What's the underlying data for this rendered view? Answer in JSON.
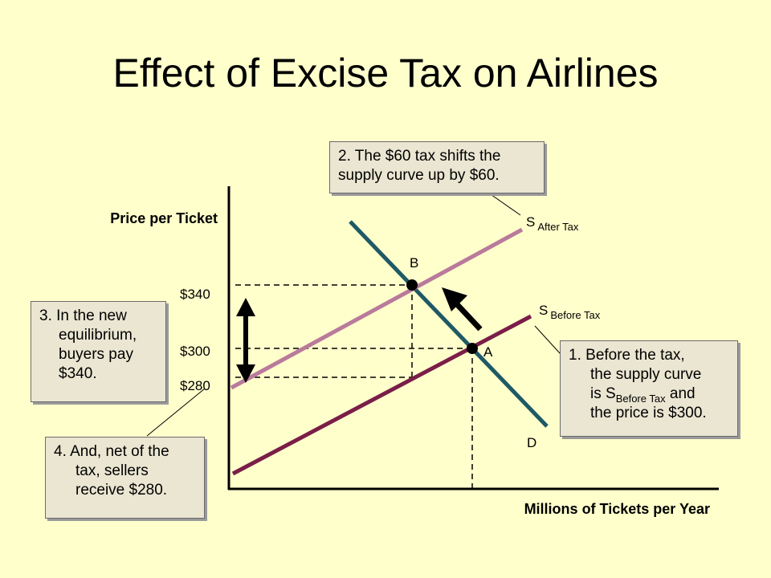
{
  "title": "Effect of Excise Tax on Airlines",
  "colors": {
    "background": "#FFFFCC",
    "supply_after": "#B97A9B",
    "supply_before": "#7A1E48",
    "demand": "#1F5966",
    "callout": "#EAE6D2"
  },
  "chart_data": {
    "type": "line",
    "title": "Effect of Excise Tax on Airlines",
    "xlabel": "Millions of Tickets per Year",
    "ylabel": "Price per Ticket",
    "y_ticks": [
      {
        "value": 340,
        "label": "$340"
      },
      {
        "value": 300,
        "label": "$300"
      },
      {
        "value": 280,
        "label": "$280"
      }
    ],
    "curves": [
      {
        "id": "s_after",
        "name": "S",
        "name_sub": "After Tax"
      },
      {
        "id": "s_before",
        "name": "S",
        "name_sub": "Before Tax"
      },
      {
        "id": "demand",
        "name": "D",
        "name_sub": ""
      }
    ],
    "points": [
      {
        "label": "B",
        "price": 340
      },
      {
        "label": "A",
        "price": 300
      }
    ],
    "tax": 60
  },
  "notes": {
    "note1": {
      "number": "1.",
      "line1": "Before the tax,",
      "line2": "the supply curve",
      "line3_pre": "is S",
      "line3_sub": "Before Tax",
      "line3_post": " and",
      "line4": "the price is $300."
    },
    "note2": {
      "line1": "2. The $60 tax shifts the",
      "line2": "supply curve  up by $60."
    },
    "note3": {
      "line1": "3. In the new",
      "line2": "equilibrium,",
      "line3": "buyers pay",
      "line4": "$340."
    },
    "note4": {
      "number": "4.",
      "line1": "And, net of the",
      "line2": "tax, sellers",
      "line3": "receive $280."
    }
  }
}
